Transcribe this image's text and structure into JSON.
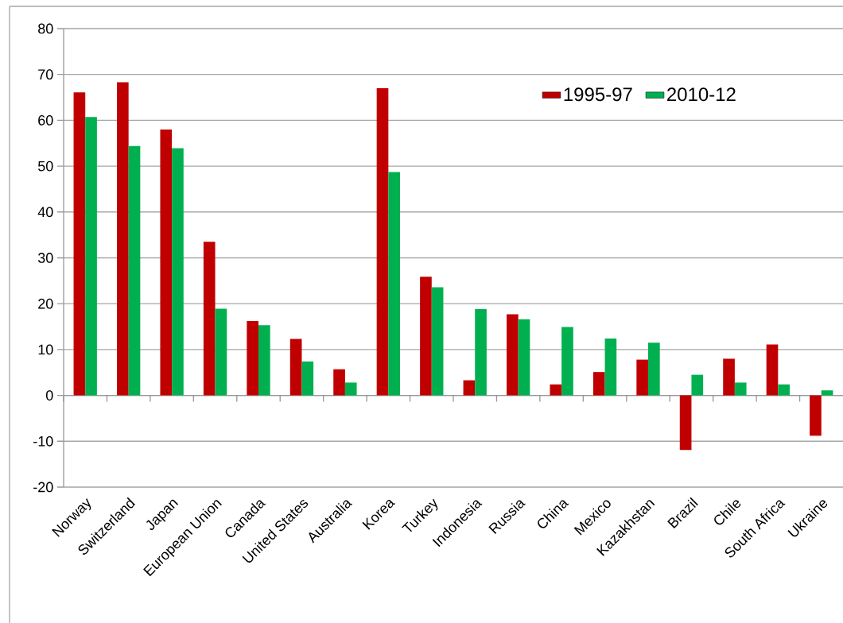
{
  "chart_data": {
    "type": "bar",
    "categories": [
      "Norway",
      "Switzerland",
      "Japan",
      "European Union",
      "Canada",
      "United States",
      "Australia",
      "Korea",
      "Turkey",
      "Indonesia",
      "Russia",
      "China",
      "Mexico",
      "Kazakhstan",
      "Brazil",
      "Chile",
      "South Africa",
      "Ukraine"
    ],
    "series": [
      {
        "name": "1995-97",
        "color": "#c00000",
        "values": [
          66.1,
          68.3,
          58.0,
          33.5,
          16.2,
          12.3,
          5.7,
          67.0,
          25.9,
          3.3,
          17.7,
          2.4,
          5.1,
          7.8,
          -11.9,
          8.0,
          11.1,
          -8.8
        ]
      },
      {
        "name": "2010-12",
        "color": "#00b050",
        "values": [
          60.7,
          54.4,
          53.9,
          18.9,
          15.3,
          7.4,
          2.8,
          48.7,
          23.6,
          18.8,
          16.6,
          14.9,
          12.4,
          11.5,
          4.5,
          2.8,
          2.4,
          1.1
        ]
      }
    ],
    "ylim": [
      -20,
      80
    ],
    "yticks": [
      -20,
      -10,
      0,
      10,
      20,
      30,
      40,
      50,
      60,
      70,
      80
    ],
    "grid": "y",
    "legend": "top right"
  }
}
